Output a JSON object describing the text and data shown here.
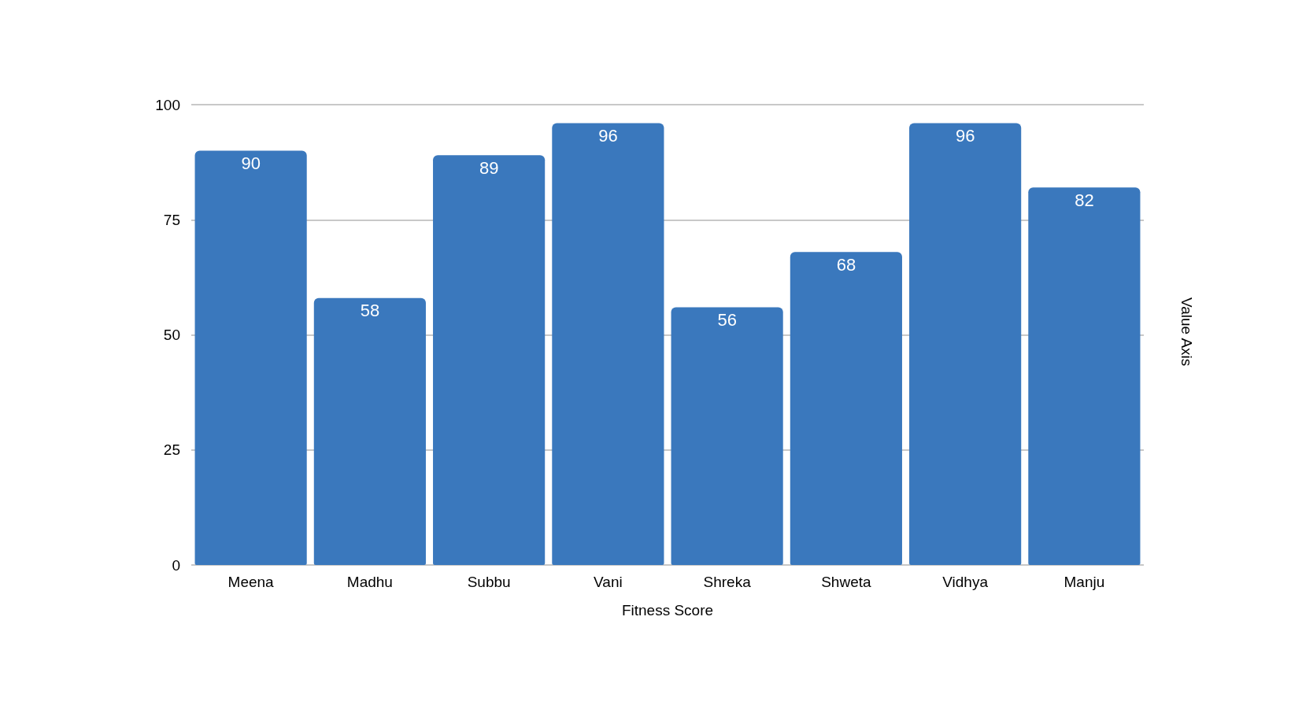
{
  "chart_data": {
    "type": "bar",
    "categories": [
      "Meena",
      "Madhu",
      "Subbu",
      "Vani",
      "Shreka",
      "Shweta",
      "Vidhya",
      "Manju"
    ],
    "values": [
      90,
      58,
      89,
      96,
      56,
      68,
      96,
      82
    ],
    "color": "#3a78bd",
    "xlabel": "Fitness Score",
    "ylabel": "Value Axis",
    "ylim": [
      0,
      100
    ],
    "yticks": [
      0,
      25,
      50,
      75,
      100
    ],
    "grid": "y",
    "data_labels": true
  }
}
